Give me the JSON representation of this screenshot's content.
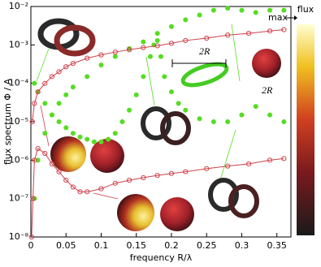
{
  "chart_data": {
    "type": "scatter-line",
    "xlabel": "frequency R/λ",
    "ylabel": "flux spectrum Φ / A",
    "xlim": [
      0,
      0.37
    ],
    "ylim": [
      1e-08,
      0.01
    ],
    "log_y": true,
    "xticks": [
      0,
      0.05,
      0.1,
      0.15,
      0.2,
      0.25,
      0.3,
      0.35
    ],
    "yticks": [
      {
        "value": 1e-08,
        "label": "10⁻⁸"
      },
      {
        "value": 1e-07,
        "label": "10⁻⁷"
      },
      {
        "value": 1e-06,
        "label": "10⁻⁶"
      },
      {
        "value": 1e-05,
        "label": "10⁻⁵"
      },
      {
        "value": 0.0001,
        "label": "10⁻⁴"
      },
      {
        "value": 0.001,
        "label": "10⁻³"
      },
      {
        "value": 0.01,
        "label": "10⁻²"
      }
    ],
    "annotations": [
      "2R",
      "2R"
    ],
    "colorbar": {
      "label": "flux",
      "top_label": "max"
    },
    "series": [
      {
        "color": "#55dd22",
        "marker": "dot",
        "line": false,
        "x": [
          0.005,
          0.01,
          0.02,
          0.03,
          0.04,
          0.05,
          0.06,
          0.08,
          0.1,
          0.12,
          0.14,
          0.16,
          0.18,
          0.2,
          0.22,
          0.24,
          0.26,
          0.28,
          0.3,
          0.32,
          0.34,
          0.36
        ],
        "values": [
          1e-07,
          1e-06,
          5e-06,
          1.5e-05,
          3e-05,
          5e-05,
          8e-05,
          0.00015,
          0.0003,
          0.0005,
          0.0008,
          0.0012,
          0.002,
          0.003,
          0.0045,
          0.006,
          0.008,
          0.009,
          0.008,
          0.007,
          0.008,
          0.008
        ]
      },
      {
        "color": "#55dd22",
        "marker": "dot",
        "line": false,
        "x": [
          0.005,
          0.01,
          0.02,
          0.03,
          0.04,
          0.05,
          0.06,
          0.07,
          0.08,
          0.09,
          0.1,
          0.11,
          0.12,
          0.13,
          0.14,
          0.15,
          0.16,
          0.17,
          0.175,
          0.18,
          0.185,
          0.19,
          0.2,
          0.21,
          0.22,
          0.24,
          0.26,
          0.28,
          0.3,
          0.32,
          0.34,
          0.36
        ],
        "values": [
          0.0001,
          6e-05,
          3e-05,
          1.5e-05,
          1e-05,
          7e-06,
          5e-06,
          4e-06,
          3.5e-06,
          3e-06,
          3e-06,
          3.5e-06,
          5e-06,
          1e-05,
          2e-05,
          5e-05,
          0.00015,
          0.0005,
          0.001,
          0.0013,
          0.0005,
          0.00015,
          6e-05,
          3e-05,
          2e-05,
          1.2e-05,
          1e-05,
          1e-05,
          1.5e-05,
          2.5e-05,
          1.5e-05,
          1e-05
        ]
      },
      {
        "color": "#d0404a",
        "marker": "circle",
        "line": true,
        "x": [
          0.002,
          0.005,
          0.01,
          0.02,
          0.03,
          0.04,
          0.05,
          0.06,
          0.08,
          0.1,
          0.12,
          0.14,
          0.16,
          0.18,
          0.2,
          0.22,
          0.25,
          0.28,
          0.31,
          0.34,
          0.36
        ],
        "values": [
          1e-05,
          3e-05,
          6e-05,
          0.0001,
          0.00015,
          0.0002,
          0.00027,
          0.00033,
          0.00045,
          0.00055,
          0.00065,
          0.00075,
          0.00085,
          0.00095,
          0.0011,
          0.0013,
          0.0015,
          0.0018,
          0.002,
          0.0023,
          0.0025
        ]
      },
      {
        "color": "#d0404a",
        "marker": "circle",
        "line": true,
        "x": [
          0.001,
          0.003,
          0.005,
          0.01,
          0.02,
          0.03,
          0.04,
          0.05,
          0.06,
          0.07,
          0.08,
          0.1,
          0.12,
          0.14,
          0.16,
          0.18,
          0.2,
          0.22,
          0.25,
          0.28,
          0.31,
          0.34,
          0.36
        ],
        "values": [
          1e-08,
          1e-07,
          1e-06,
          2e-06,
          1.5e-06,
          8e-07,
          5e-07,
          3e-07,
          2e-07,
          1.5e-07,
          1.5e-07,
          1.8e-07,
          2.5e-07,
          3e-07,
          3.5e-07,
          4e-07,
          4.5e-07,
          5e-07,
          6e-07,
          7e-07,
          8e-07,
          1e-06,
          1.1e-06
        ]
      }
    ]
  }
}
